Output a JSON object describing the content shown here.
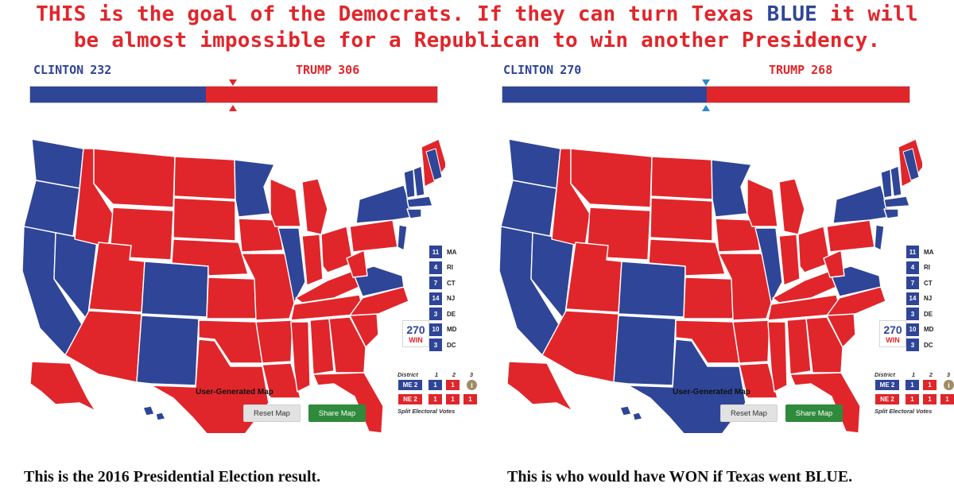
{
  "headline": {
    "part1": "THIS is the goal of the Democrats. If they can turn Texas ",
    "blue_word": "BLUE",
    "part2": " it will",
    "line2": "be almost impossible for a Republican to win another Presidency."
  },
  "colors": {
    "dem_blue": "#2f4597",
    "rep_red": "#e0262b",
    "share_green": "#2f8a3b",
    "marker_blue": "#2f88c8"
  },
  "panels": [
    {
      "clinton_label": "CLINTON",
      "clinton_votes": "232",
      "trump_label": "TRUMP",
      "trump_votes": "306",
      "dem_share": 0.4312,
      "texas_party": "R",
      "caption": "This is the 2016 Presidential Election result."
    },
    {
      "clinton_label": "CLINTON",
      "clinton_votes": "270",
      "trump_label": "TRUMP",
      "trump_votes": "268",
      "dem_share": 0.5019,
      "texas_party": "D",
      "caption": "This is who would have WON if Texas went BLUE."
    }
  ],
  "small_states": [
    {
      "votes": "11",
      "abbr": "MA"
    },
    {
      "votes": "4",
      "abbr": "RI"
    },
    {
      "votes": "7",
      "abbr": "CT"
    },
    {
      "votes": "14",
      "abbr": "NJ"
    },
    {
      "votes": "3",
      "abbr": "DE"
    },
    {
      "votes": "10",
      "abbr": "MD"
    },
    {
      "votes": "3",
      "abbr": "DC"
    }
  ],
  "logo": {
    "number": "270",
    "text": "WIN"
  },
  "district_table": {
    "header": [
      "District",
      "1",
      "2",
      "3"
    ],
    "rows": [
      {
        "label": "ME 2",
        "party": "D",
        "cells": [
          {
            "v": "1",
            "p": "D"
          },
          {
            "v": "1",
            "p": "R"
          }
        ]
      },
      {
        "label": "NE 2",
        "party": "R",
        "cells": [
          {
            "v": "1",
            "p": "R"
          },
          {
            "v": "1",
            "p": "R"
          },
          {
            "v": "1",
            "p": "R"
          }
        ]
      }
    ],
    "info_icon": "i",
    "footer": "Split Electoral Votes"
  },
  "map_title": "User-Generated Map",
  "reset_label": "Reset Map",
  "share_label": "Share Map"
}
